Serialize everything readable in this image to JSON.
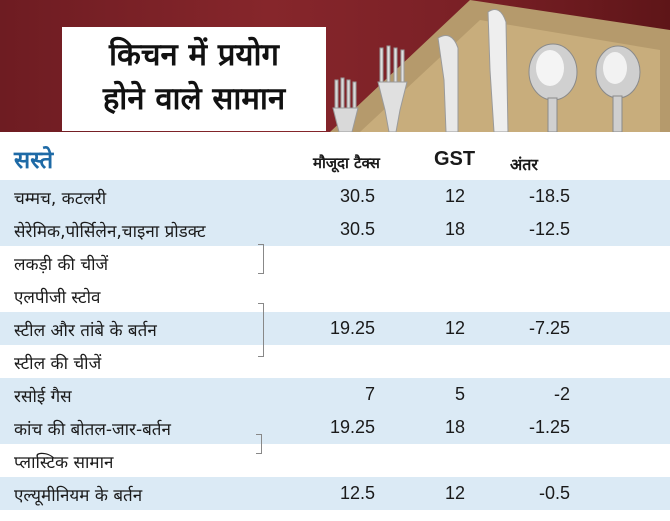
{
  "title": {
    "line1": "किचन में प्रयोग",
    "line2": "होने वाले सामान"
  },
  "table": {
    "category": "सस्ते",
    "headers": {
      "current_tax": "मौजूदा टैक्स",
      "gst": "GST",
      "difference": "अंतर"
    },
    "rows": [
      {
        "name": "चम्मच, कटलरी",
        "current_tax": "30.5",
        "gst": "12",
        "difference": "-18.5"
      },
      {
        "name": "सेरेमिक,पोर्सिलेन,चाइना प्रोडक्ट",
        "current_tax": "30.5",
        "gst": "18",
        "difference": "-12.5"
      },
      {
        "name": "लकड़ी की चीजें",
        "current_tax": "",
        "gst": "",
        "difference": ""
      },
      {
        "name": "एलपीजी स्टोव",
        "current_tax": "",
        "gst": "",
        "difference": ""
      },
      {
        "name": "स्टील और तांबे के बर्तन",
        "current_tax": "19.25",
        "gst": "12",
        "difference": "-7.25"
      },
      {
        "name": "स्टील की चीजें",
        "current_tax": "",
        "gst": "",
        "difference": ""
      },
      {
        "name": "रसोई गैस",
        "current_tax": "7",
        "gst": "5",
        "difference": "-2"
      },
      {
        "name": "कांच की बोतल-जार-बर्तन",
        "current_tax": "19.25",
        "gst": "18",
        "difference": "-1.25"
      },
      {
        "name": "प्लास्टिक सामान",
        "current_tax": "",
        "gst": "",
        "difference": ""
      },
      {
        "name": "एल्यूमीनियम के बर्तन",
        "current_tax": "12.5",
        "gst": "12",
        "difference": "-0.5"
      }
    ]
  },
  "colors": {
    "shade": "#dbeaf5",
    "category": "#1e6aa6",
    "backdrop": "#7a2026"
  },
  "image": {
    "subject": "cutlery-photo"
  }
}
